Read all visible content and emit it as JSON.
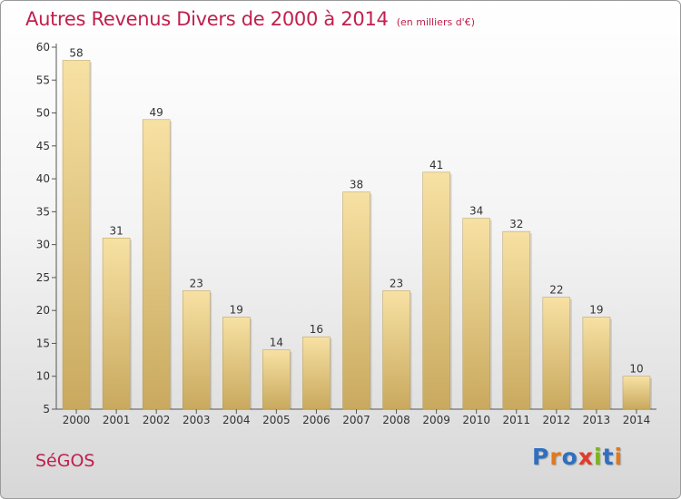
{
  "chart_data": {
    "type": "bar",
    "title": "Autres Revenus Divers de 2000 à 2014",
    "subtitle": "(en milliers d'€)",
    "categories": [
      "2000",
      "2001",
      "2002",
      "2003",
      "2004",
      "2005",
      "2006",
      "2007",
      "2008",
      "2009",
      "2010",
      "2011",
      "2012",
      "2013",
      "2014"
    ],
    "values": [
      58,
      31,
      49,
      23,
      19,
      14,
      16,
      38,
      23,
      41,
      34,
      32,
      22,
      19,
      10
    ],
    "ylim": [
      5,
      60
    ],
    "yticks": [
      5,
      10,
      15,
      20,
      25,
      30,
      35,
      40,
      45,
      50,
      55,
      60
    ],
    "grid": false,
    "bar_color": "#e9cf86",
    "text_color": "#c0204d"
  },
  "footer": {
    "place_name": "SéGOS",
    "logo_text": "Proxiti",
    "logo_colors": [
      "#2e6fc0",
      "#e2791b",
      "#2e6fc0",
      "#e23a2b",
      "#7ab51d",
      "#2e6fc0",
      "#e2791b"
    ]
  }
}
